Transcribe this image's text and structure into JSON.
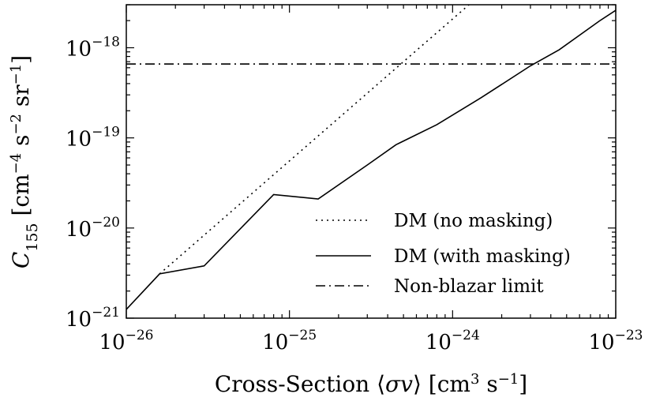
{
  "chart_data": {
    "type": "line",
    "xscale": "log",
    "yscale": "log",
    "xlim": [
      1e-26,
      1e-23
    ],
    "ylim": [
      1e-21,
      3e-18
    ],
    "xlabel": "Cross-Section ⟨σv⟩ [cm³ s⁻¹]",
    "ylabel": "C₁₅₅ [cm⁻⁴ s⁻² sr⁻¹]",
    "xticks": [
      {
        "base": "10",
        "exp": "−26",
        "value": 1e-26
      },
      {
        "base": "10",
        "exp": "−25",
        "value": 1e-25
      },
      {
        "base": "10",
        "exp": "−24",
        "value": 1e-24
      },
      {
        "base": "10",
        "exp": "−23",
        "value": 1e-23
      }
    ],
    "yticks": [
      {
        "base": "10",
        "exp": "−21",
        "value": 1e-21
      },
      {
        "base": "10",
        "exp": "−20",
        "value": 1e-20
      },
      {
        "base": "10",
        "exp": "−19",
        "value": 1e-19
      },
      {
        "base": "10",
        "exp": "−18",
        "value": 1e-18
      }
    ],
    "grid": false,
    "legend_position": "lower-right",
    "series": [
      {
        "name": "DM (no masking)",
        "style": "dotted",
        "x": [
          1.6e-26,
          1.26e-24
        ],
        "y": [
          3.1e-21,
          3e-18
        ]
      },
      {
        "name": "DM (with masking)",
        "style": "solid",
        "x": [
          1e-26,
          1.6e-26,
          3e-26,
          8e-26,
          1.5e-25,
          3e-25,
          4.5e-25,
          8e-25,
          1.5e-24,
          3e-24,
          4.5e-24,
          8e-24,
          1e-23
        ],
        "y": [
          1.25e-21,
          3.1e-21,
          3.8e-21,
          2.35e-20,
          2.1e-20,
          5e-20,
          8.4e-20,
          1.4e-19,
          2.8e-19,
          6.3e-19,
          9.5e-19,
          2e-18,
          2.6e-18
        ]
      },
      {
        "name": "Non-blazar limit",
        "style": "dashdot",
        "x": [
          1e-26,
          1e-23
        ],
        "y": [
          6.6e-19,
          6.6e-19
        ]
      }
    ]
  }
}
